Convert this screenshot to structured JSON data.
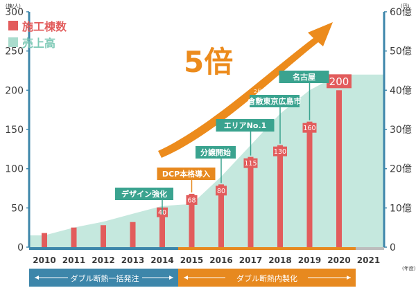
{
  "chart_data": {
    "type": "bar",
    "left_axis_unit": "(棟/人)",
    "right_axis_unit": "(円)",
    "year_unit": "(年度)",
    "legend": {
      "bars": "施工棟数",
      "area": "売上高"
    },
    "multiplier": "5倍",
    "y_ticks_left": [
      "0",
      "50",
      "100",
      "150",
      "200",
      "250",
      "300"
    ],
    "y_ticks_right": [
      "0",
      "10億",
      "20億",
      "30億",
      "40億",
      "50億",
      "60億"
    ],
    "ylim_left": [
      0,
      300
    ],
    "ylim_right": [
      0,
      60
    ],
    "categories": [
      "2010",
      "2011",
      "2012",
      "2013",
      "2014",
      "2015",
      "2016",
      "2017",
      "2018",
      "2019",
      "2020",
      "2021"
    ],
    "series": [
      {
        "name": "施工棟数",
        "values": [
          18,
          25,
          28,
          32,
          40,
          68,
          80,
          115,
          130,
          160,
          200,
          null
        ]
      },
      {
        "name": "売上高",
        "values": [
          3,
          5,
          6.5,
          8.5,
          10.5,
          11,
          18,
          26,
          34,
          40,
          44,
          44
        ]
      }
    ],
    "value_labels": [
      {
        "year": "2014",
        "text": "40"
      },
      {
        "year": "2015",
        "text": "68"
      },
      {
        "year": "2016",
        "text": "80"
      },
      {
        "year": "2017",
        "text": "115"
      },
      {
        "year": "2018",
        "text": "130"
      },
      {
        "year": "2019",
        "text": "160"
      },
      {
        "year": "2020",
        "text": "200"
      }
    ],
    "milestones": [
      {
        "year": "2014",
        "text": "デザイン強化"
      },
      {
        "year": "2015",
        "text": "DCP本格導入"
      },
      {
        "year": "2016",
        "text": "分譲開始"
      },
      {
        "year": "2017",
        "text": "エリアNo.1"
      },
      {
        "year": "2018",
        "text": "倉敷東京広島市",
        "prefix": [
          "2月",
          "6月",
          "10月"
        ]
      },
      {
        "year": "2019",
        "text": "名古屋"
      }
    ],
    "phases": [
      {
        "text": "ダブル断熱一括発注",
        "color": "#3d86aa"
      },
      {
        "text": "ダブル断熱内製化",
        "color": "#e7891f"
      }
    ],
    "colors": {
      "bar": "#e25c5c",
      "area": "#c5e8de",
      "axis": "#3d86aa",
      "arrow": "#ec8b1c",
      "milestone_teal": "#3aa38f",
      "milestone_orange": "#e7891f",
      "tick_text": "#3b3b3b"
    }
  }
}
